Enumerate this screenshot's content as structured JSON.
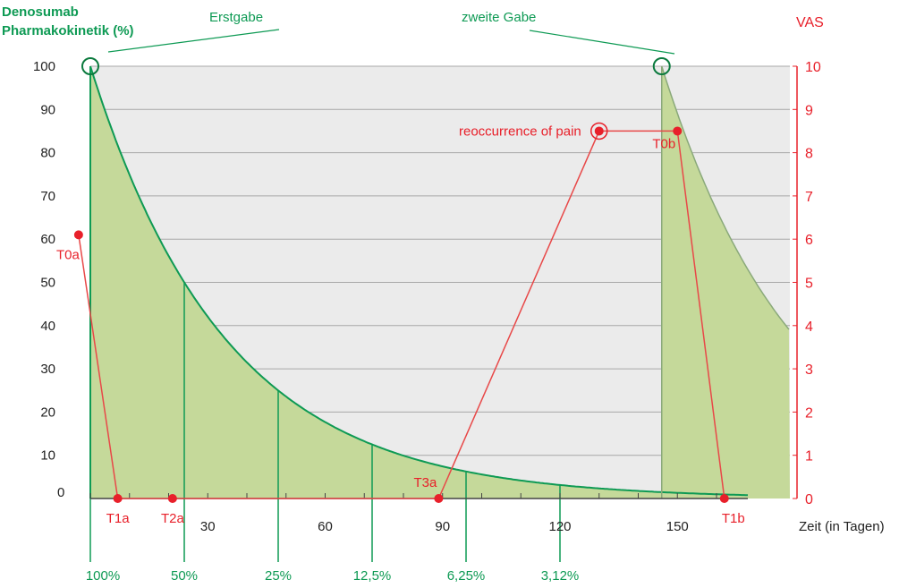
{
  "chart_data": {
    "type": "line",
    "title": "",
    "left_axis": {
      "label_line1": "Denosumab",
      "label_line2": "Pharmakokinetik (%)",
      "ylim": [
        0,
        100
      ],
      "ticks": [
        0,
        10,
        20,
        30,
        40,
        50,
        60,
        70,
        80,
        90,
        100
      ],
      "color": "#0e9a54"
    },
    "right_axis": {
      "label": "VAS",
      "ylim": [
        0,
        10
      ],
      "ticks": [
        0,
        1,
        2,
        3,
        4,
        5,
        6,
        7,
        8,
        9,
        10
      ],
      "color": "#e8202a"
    },
    "x_axis": {
      "label": "Zeit (in Tagen)",
      "xlim": [
        0,
        168
      ],
      "ticks": [
        30,
        60,
        90,
        120,
        150
      ]
    },
    "grid": true,
    "pharmacokinetics": {
      "half_life_days": 24,
      "doses": [
        {
          "day": 0,
          "label": "Erstgabe"
        },
        {
          "day": 146,
          "label": "zweite Gabe"
        }
      ],
      "halving_markers": [
        {
          "day": 0,
          "label": "100%"
        },
        {
          "day": 24,
          "label": "50%"
        },
        {
          "day": 48,
          "label": "25%"
        },
        {
          "day": 72,
          "label": "12,5%"
        },
        {
          "day": 96,
          "label": "6,25%"
        },
        {
          "day": 120,
          "label": "3,12%"
        }
      ]
    },
    "vas_series": {
      "name": "VAS",
      "points": [
        {
          "day": -3,
          "vas": 6.1,
          "label": "T0a"
        },
        {
          "day": 7,
          "vas": 0,
          "label": "T1a"
        },
        {
          "day": 21,
          "vas": 0,
          "label": "T2a"
        },
        {
          "day": 89,
          "vas": 0,
          "label": "T3a"
        },
        {
          "day": 130,
          "vas": 8.5,
          "label": "reoccurrence of pain"
        },
        {
          "day": 150,
          "vas": 8.5,
          "label": "T0b"
        },
        {
          "day": 162,
          "vas": 0,
          "label": "T1b"
        }
      ]
    },
    "colors": {
      "fill": "#c5d99a",
      "curve": "#0e9a54",
      "background": "#ebebeb",
      "grid": "#a8a8a8",
      "vas": "#e8202a"
    }
  }
}
